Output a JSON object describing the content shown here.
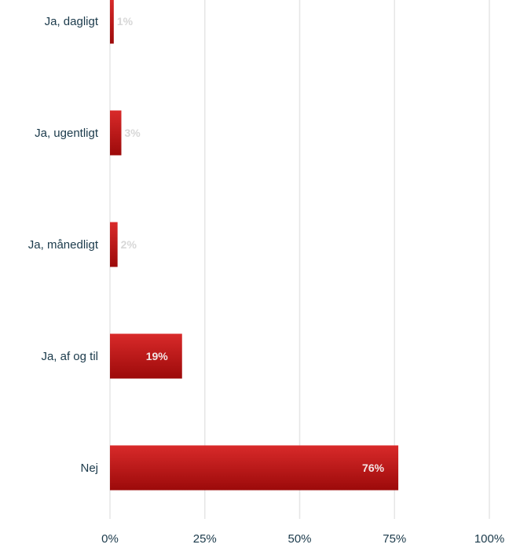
{
  "chart_data": {
    "type": "bar",
    "orientation": "horizontal",
    "categories": [
      "Ja, dagligt",
      "Ja, ugentligt",
      "Ja, månedligt",
      "Ja, af og til",
      "Nej"
    ],
    "values": [
      1,
      3,
      2,
      19,
      76
    ],
    "value_labels": [
      "1%",
      "3%",
      "2%",
      "19%",
      "76%"
    ],
    "xlim": [
      0,
      100
    ],
    "x_ticks": [
      0,
      25,
      50,
      75,
      100
    ],
    "x_tick_labels": [
      "0%",
      "25%",
      "50%",
      "75%",
      "100%"
    ],
    "title": "",
    "xlabel": "",
    "ylabel": "",
    "grid": "vertical",
    "legend": "none",
    "colors": {
      "bar_top": "#d92a2a",
      "bar_bottom": "#9c0a0a",
      "grid": "#e6e6e6",
      "label_text": "#1b3a4b",
      "value_inside": "#f3e6e6",
      "value_outside": "#d7d7d7"
    }
  }
}
